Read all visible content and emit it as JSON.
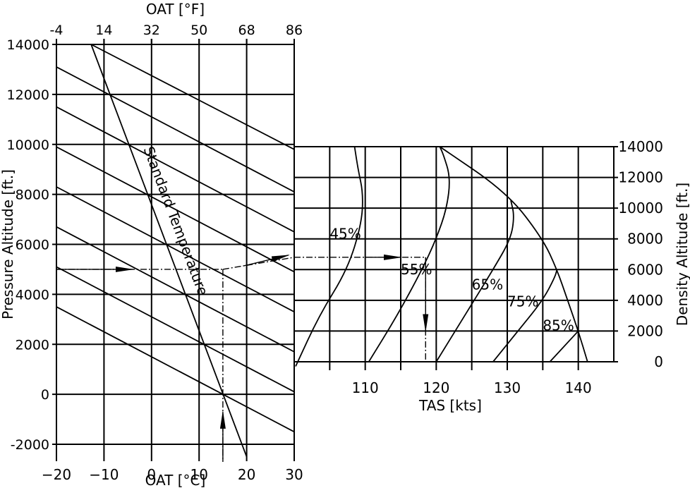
{
  "chart_data": [
    {
      "type": "line",
      "panel": "left",
      "title": "",
      "xlabel": "OAT [°C]",
      "x2label": "OAT [°F]",
      "ylabel": "Pressure Altitude [ft.]",
      "xlim": [
        -20,
        30
      ],
      "ylim": [
        -2000,
        14000
      ],
      "x_ticks": [
        "-20",
        "-10",
        "0",
        "10",
        "20",
        "30"
      ],
      "x2_ticks": [
        "-4",
        "14",
        "32",
        "50",
        "68",
        "86"
      ],
      "y_ticks": [
        "-2000",
        "0",
        "2000",
        "4000",
        "6000",
        "8000",
        "10000",
        "12000",
        "14000"
      ],
      "grid": true,
      "annotation": "Standard Temperature",
      "standard_temperature_line": [
        {
          "x": -12.7,
          "y": 14000
        },
        {
          "x": 20,
          "y": -2500
        }
      ],
      "density_altitude_lines": [
        {
          "x": [
            -12.7,
            30
          ],
          "y": [
            14000,
            9800
          ]
        },
        {
          "x": [
            -20,
            30
          ],
          "y": [
            13100,
            8100
          ]
        },
        {
          "x": [
            -20,
            30
          ],
          "y": [
            11500,
            6500
          ]
        },
        {
          "x": [
            -20,
            30
          ],
          "y": [
            9900,
            4900
          ]
        },
        {
          "x": [
            -20,
            30
          ],
          "y": [
            8300,
            3300
          ]
        },
        {
          "x": [
            -20,
            30
          ],
          "y": [
            6700,
            1700
          ]
        },
        {
          "x": [
            -20,
            30
          ],
          "y": [
            5100,
            100
          ]
        },
        {
          "x": [
            -20,
            30
          ],
          "y": [
            3500,
            -1500
          ]
        }
      ],
      "example_path": [
        {
          "x": -20,
          "y": 5000
        },
        {
          "x": 15,
          "y": 5000
        },
        {
          "x": 15,
          "y": -2700
        }
      ]
    },
    {
      "type": "line",
      "panel": "right",
      "title": "",
      "xlabel": "TAS [kts]",
      "ylabel": "Density Altitude [ft.]",
      "xlim": [
        100,
        145
      ],
      "ylim": [
        0,
        14000
      ],
      "x_ticks": [
        "110",
        "120",
        "130",
        "140"
      ],
      "y_ticks": [
        "0",
        "2000",
        "4000",
        "6000",
        "8000",
        "10000",
        "12000",
        "14000"
      ],
      "grid": true,
      "series": [
        {
          "name": "45%",
          "x": [
            100.2,
            103.5,
            107.5,
            109.5,
            109.7,
            109.0,
            108.5
          ],
          "y": [
            -300,
            3000,
            6000,
            9000,
            11000,
            12500,
            14000
          ]
        },
        {
          "name": "55%",
          "x": [
            110.5,
            114.5,
            118.0,
            120.0,
            121.5,
            122.0,
            121.0,
            120.5
          ],
          "y": [
            0,
            3000,
            6000,
            8000,
            10000,
            12000,
            13500,
            14000
          ]
        },
        {
          "name": "65%",
          "x": [
            120.0,
            124.0,
            128.0,
            130.5,
            131.0,
            130.5
          ],
          "y": [
            0,
            3000,
            6000,
            8000,
            9500,
            10500
          ]
        },
        {
          "name": "75%",
          "x": [
            128.0,
            131.5,
            135.0,
            136.7,
            137.0
          ],
          "y": [
            0,
            2000,
            4000,
            5500,
            6000
          ]
        },
        {
          "name": "85%",
          "x": [
            136.0,
            138.0,
            140.0
          ],
          "y": [
            0,
            1000,
            2000
          ]
        },
        {
          "name": "",
          "x": [
            120.5,
            130.0,
            135.0,
            137.0,
            138.5,
            140.0,
            141.3
          ],
          "y": [
            14000,
            11000,
            8000,
            6000,
            4000,
            2000,
            0
          ]
        }
      ],
      "example_path": [
        {
          "x": 100,
          "y": 6800
        },
        {
          "x": 118.5,
          "y": 6800
        },
        {
          "x": 118.5,
          "y": 0
        }
      ]
    }
  ]
}
